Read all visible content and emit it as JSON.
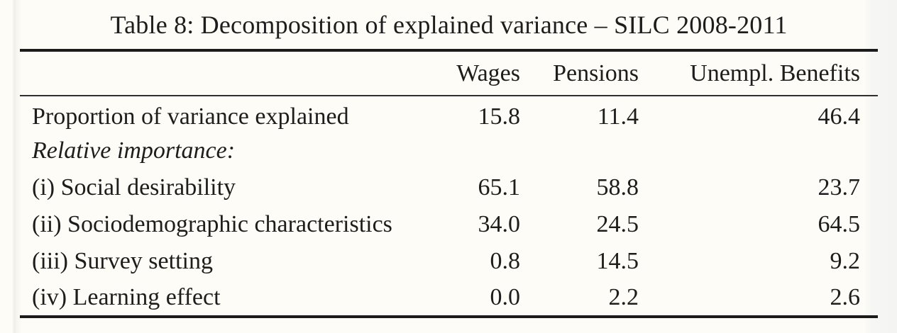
{
  "table": {
    "caption": "Table 8: Decomposition of explained variance – SILC 2008-2011",
    "columns": [
      "",
      "Wages",
      "Pensions",
      "Unempl. Benefits"
    ],
    "rows": [
      {
        "label": "Proportion of variance explained",
        "values": [
          "15.8",
          "11.4",
          "46.4"
        ]
      },
      {
        "label": "Relative importance:",
        "values": [
          "",
          "",
          ""
        ]
      },
      {
        "label": "(i) Social desirability",
        "values": [
          "65.1",
          "58.8",
          "23.7"
        ]
      },
      {
        "label": "(ii) Sociodemographic characteristics",
        "values": [
          "34.0",
          "24.5",
          "64.5"
        ]
      },
      {
        "label": "(iii) Survey setting",
        "values": [
          "0.8",
          "14.5",
          "9.2"
        ]
      },
      {
        "label": "(iv) Learning effect",
        "values": [
          "0.0",
          "2.2",
          "2.6"
        ]
      }
    ],
    "colors": {
      "text": "#1d1d1d",
      "rule": "#1b1b1b",
      "background": "#fdfcf6"
    }
  }
}
